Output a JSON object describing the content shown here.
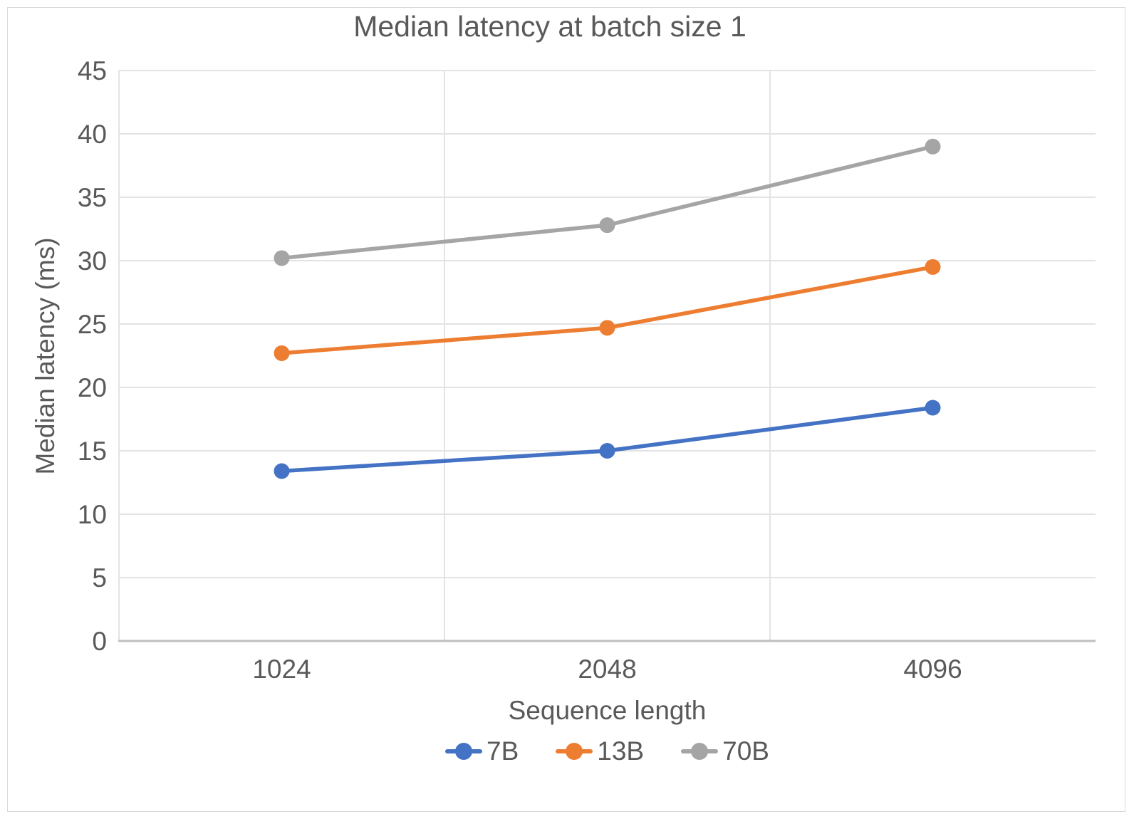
{
  "chart_data": {
    "type": "line",
    "title": "Median latency at batch size 1",
    "xlabel": "Sequence length",
    "ylabel": "Median latency (ms)",
    "categories": [
      "1024",
      "2048",
      "4096"
    ],
    "series": [
      {
        "name": "7B",
        "color": "#4472C4",
        "values": [
          13.4,
          15.0,
          18.4
        ]
      },
      {
        "name": "13B",
        "color": "#ED7D31",
        "values": [
          22.7,
          24.7,
          29.5
        ]
      },
      {
        "name": "70B",
        "color": "#A5A5A5",
        "values": [
          30.2,
          32.8,
          39.0
        ]
      }
    ],
    "ylim": [
      0,
      45
    ],
    "yticks": [
      0,
      5,
      10,
      15,
      20,
      25,
      30,
      35,
      40,
      45
    ],
    "grid": "horizontal-major-and-vertical-category-boundaries",
    "legend_position": "bottom",
    "marker": "circle"
  },
  "styles": {
    "text_color": "#595959",
    "grid_color": "#e3e3e3",
    "axis_line_color": "#bfbfbf",
    "frame_border_color": "#d9d9d9",
    "background": "#ffffff"
  }
}
